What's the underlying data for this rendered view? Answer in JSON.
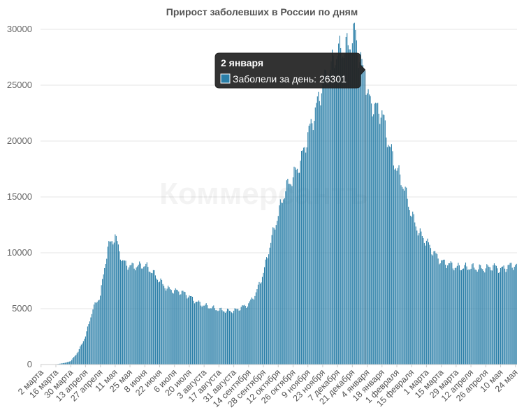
{
  "watermark": "Коммерсантъ",
  "tooltip": {
    "date": "2 января",
    "label": "Заболели за день: 26301",
    "value": 26301
  },
  "chart_data": {
    "type": "bar",
    "title": "Прирост заболевших в России по дням",
    "xlabel": "",
    "ylabel": "",
    "ylim": [
      0,
      30000
    ],
    "yticks": [
      0,
      5000,
      10000,
      15000,
      20000,
      25000,
      30000
    ],
    "start_date": "2020-03-02",
    "end_date": "2021-05-25",
    "bar_color": "#2b7fa8",
    "grid": true,
    "series": [
      {
        "name": "Заболели за день",
        "anchors": [
          [
            "2020-03-02",
            0
          ],
          [
            "2020-03-16",
            20
          ],
          [
            "2020-03-25",
            160
          ],
          [
            "2020-03-30",
            300
          ],
          [
            "2020-04-06",
            1150
          ],
          [
            "2020-04-13",
            2550
          ],
          [
            "2020-04-20",
            5000
          ],
          [
            "2020-04-27",
            6200
          ],
          [
            "2020-05-04",
            10500
          ],
          [
            "2020-05-07",
            10900
          ],
          [
            "2020-05-11",
            11500
          ],
          [
            "2020-05-18",
            9200
          ],
          [
            "2020-05-25",
            8800
          ],
          [
            "2020-06-01",
            8800
          ],
          [
            "2020-06-08",
            8900
          ],
          [
            "2020-06-15",
            8300
          ],
          [
            "2020-06-22",
            7500
          ],
          [
            "2020-06-29",
            6800
          ],
          [
            "2020-07-06",
            6600
          ],
          [
            "2020-07-13",
            6500
          ],
          [
            "2020-07-20",
            6100
          ],
          [
            "2020-07-27",
            5600
          ],
          [
            "2020-08-03",
            5300
          ],
          [
            "2020-08-10",
            5100
          ],
          [
            "2020-08-17",
            4900
          ],
          [
            "2020-08-24",
            4800
          ],
          [
            "2020-08-31",
            4800
          ],
          [
            "2020-09-07",
            5100
          ],
          [
            "2020-09-14",
            5400
          ],
          [
            "2020-09-21",
            6400
          ],
          [
            "2020-09-28",
            8200
          ],
          [
            "2020-10-05",
            11000
          ],
          [
            "2020-10-12",
            13500
          ],
          [
            "2020-10-19",
            15700
          ],
          [
            "2020-10-26",
            16800
          ],
          [
            "2020-11-02",
            18100
          ],
          [
            "2020-11-09",
            20500
          ],
          [
            "2020-11-16",
            22700
          ],
          [
            "2020-11-23",
            25000
          ],
          [
            "2020-11-30",
            26500
          ],
          [
            "2020-12-07",
            28000
          ],
          [
            "2020-12-14",
            28200
          ],
          [
            "2020-12-21",
            29000
          ],
          [
            "2020-12-24",
            29900
          ],
          [
            "2020-12-28",
            27000
          ],
          [
            "2021-01-02",
            26301
          ],
          [
            "2021-01-04",
            24000
          ],
          [
            "2021-01-11",
            23000
          ],
          [
            "2021-01-18",
            22500
          ],
          [
            "2021-01-25",
            19500
          ],
          [
            "2021-02-01",
            17500
          ],
          [
            "2021-02-08",
            15800
          ],
          [
            "2021-02-15",
            13400
          ],
          [
            "2021-02-22",
            11800
          ],
          [
            "2021-03-01",
            11000
          ],
          [
            "2021-03-08",
            10000
          ],
          [
            "2021-03-15",
            9200
          ],
          [
            "2021-03-22",
            9000
          ],
          [
            "2021-03-29",
            8700
          ],
          [
            "2021-04-05",
            8700
          ],
          [
            "2021-04-12",
            8700
          ],
          [
            "2021-04-19",
            8600
          ],
          [
            "2021-04-26",
            8600
          ],
          [
            "2021-05-03",
            8800
          ],
          [
            "2021-05-10",
            8500
          ],
          [
            "2021-05-17",
            8800
          ],
          [
            "2021-05-25",
            8900
          ]
        ]
      }
    ],
    "xtick_labels": [
      "2 марта",
      "16 марта",
      "30 марта",
      "13 апреля",
      "27 апреля",
      "11 мая",
      "25 мая",
      "8 июня",
      "22 июня",
      "6 июля",
      "20 июля",
      "3 августа",
      "17 августа",
      "31 августа",
      "14 сентября",
      "28 сентября",
      "12 октября",
      "26 октября",
      "9 ноября",
      "23 ноября",
      "7 декабря",
      "21 декабря",
      "4 января",
      "18 января",
      "1 февраля",
      "15 февраля",
      "1 марта",
      "15 марта",
      "29 марта",
      "12 апреля",
      "26 апреля",
      "10 мая",
      "24 мая"
    ]
  }
}
